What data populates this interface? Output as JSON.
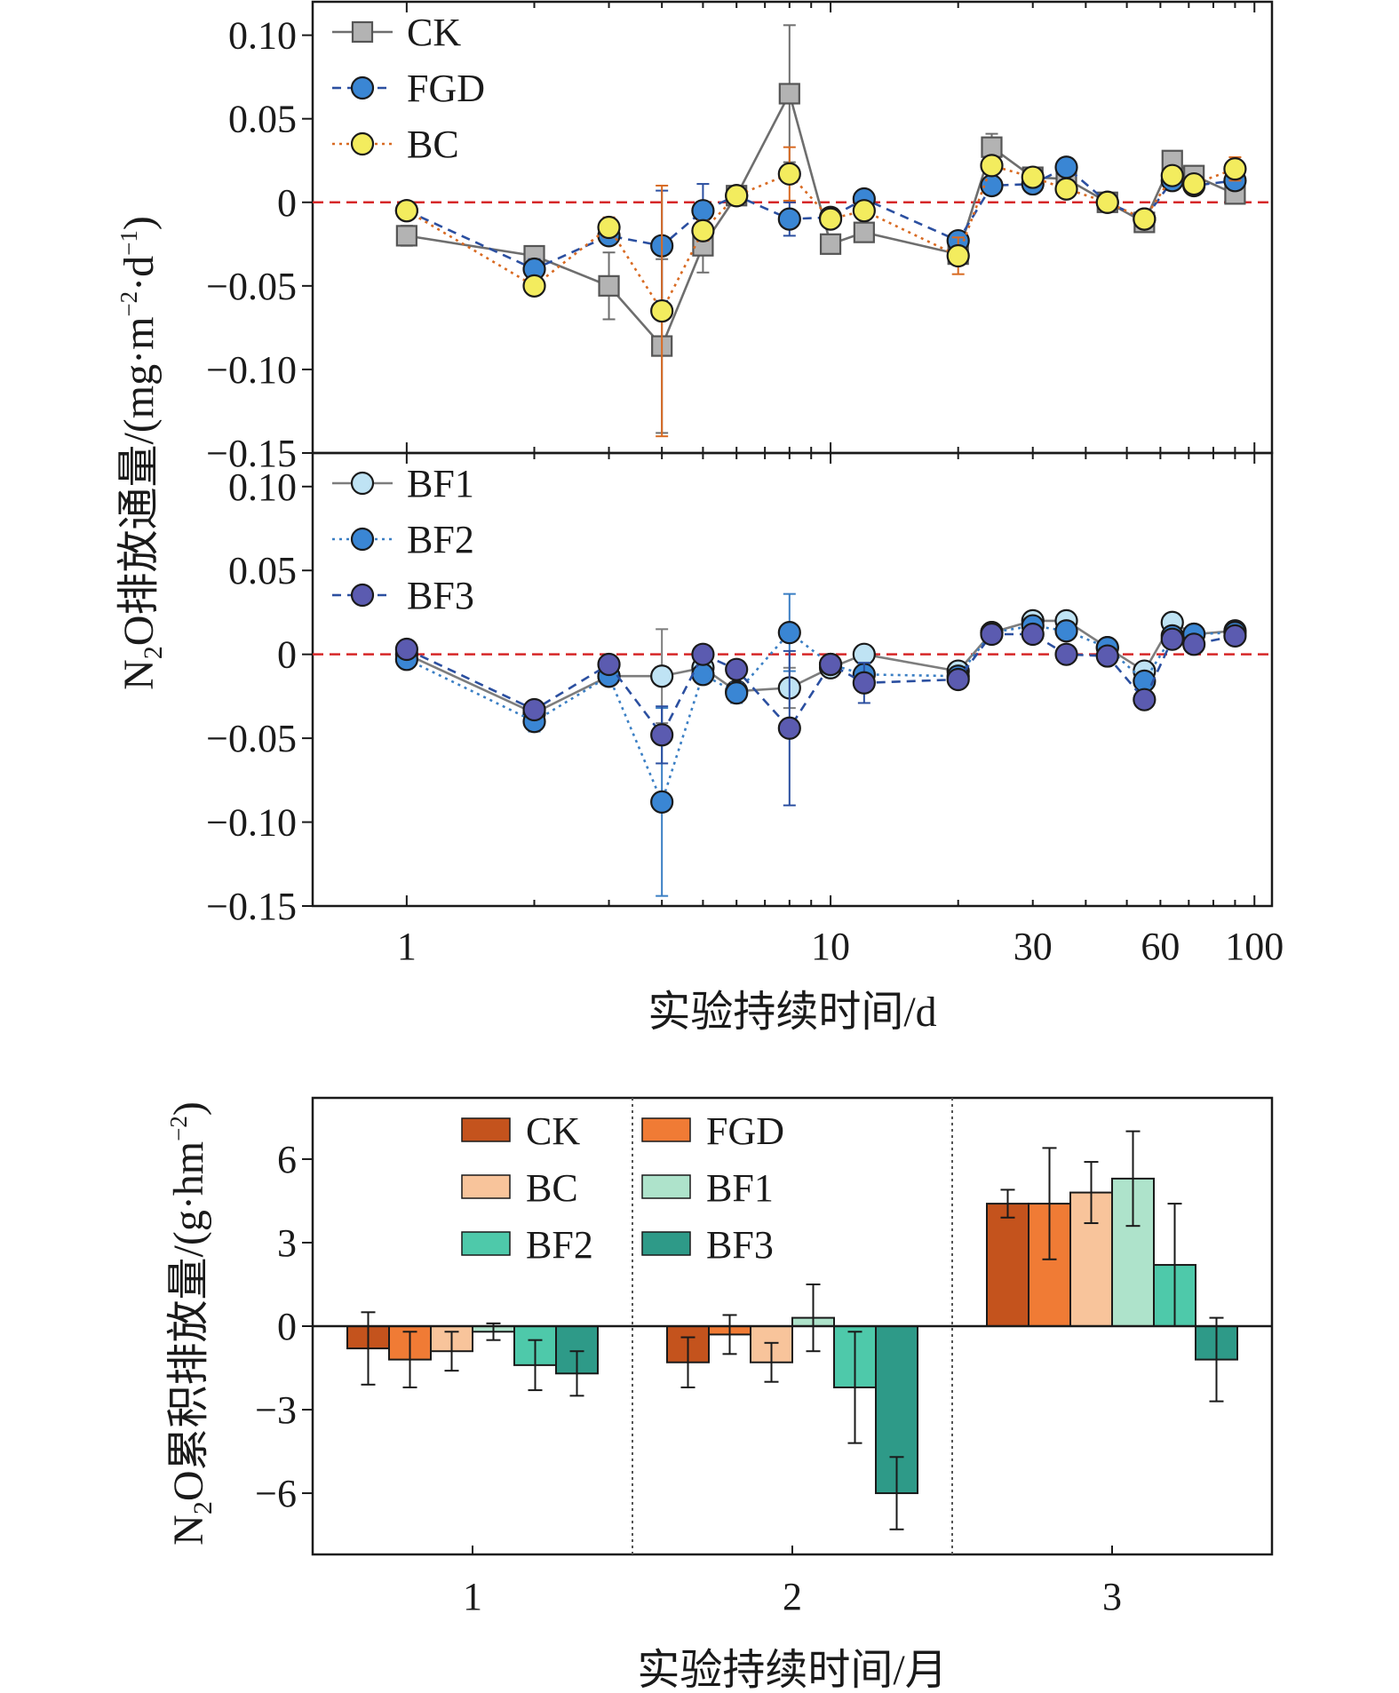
{
  "chart_data": [
    {
      "type": "line",
      "panel": "top",
      "x_scale": "log",
      "xlim": [
        0.6,
        110
      ],
      "ylim": [
        -0.15,
        0.12
      ],
      "yticks": [
        0.1,
        0.05,
        0,
        -0.05,
        -0.1,
        -0.15
      ],
      "ytick_labels": [
        "0.10",
        "0.05",
        "0",
        "−0.05",
        "−0.10",
        "−0.15"
      ],
      "zero_line": true,
      "legend_position": "top-left",
      "x": [
        1,
        2,
        3,
        4,
        5,
        6,
        8,
        10,
        12,
        20,
        24,
        30,
        36,
        45,
        55,
        64,
        72,
        90
      ],
      "series": [
        {
          "name": "CK",
          "marker": "square",
          "line": "solid",
          "color": "#6e6e6e",
          "fill": "#b3b3b3",
          "values": [
            -0.02,
            -0.032,
            -0.05,
            -0.086,
            -0.026,
            0.004,
            0.065,
            -0.025,
            -0.018,
            -0.031,
            0.033,
            0.015,
            0.014,
            0.0,
            -0.012,
            0.025,
            0.016,
            0.005
          ],
          "errors": [
            0.006,
            0.004,
            0.02,
            0.052,
            0.016,
            0.004,
            0.041,
            0.004,
            0.004,
            0.004,
            0.008,
            0.005,
            0.004,
            0.003,
            0.003,
            0.005,
            0.005,
            0.004
          ]
        },
        {
          "name": "FGD",
          "marker": "circle",
          "line": "dashed",
          "color": "#2b4fa0",
          "fill": "#3a86d4",
          "values": [
            -0.005,
            -0.04,
            -0.02,
            -0.026,
            -0.005,
            0.004,
            -0.01,
            -0.009,
            0.002,
            -0.023,
            0.01,
            0.011,
            0.021,
            0.0,
            -0.01,
            0.013,
            0.01,
            0.013
          ],
          "errors": [
            0.004,
            0.006,
            0.004,
            0.033,
            0.016,
            0.004,
            0.01,
            0.004,
            0.004,
            0.004,
            0.004,
            0.004,
            0.004,
            0.003,
            0.004,
            0.004,
            0.004,
            0.004
          ]
        },
        {
          "name": "BC",
          "marker": "circle",
          "line": "dotted",
          "color": "#d86a22",
          "fill": "#f3ec5e",
          "values": [
            -0.005,
            -0.05,
            -0.015,
            -0.065,
            -0.017,
            0.004,
            0.017,
            -0.01,
            -0.005,
            -0.032,
            0.022,
            0.015,
            0.008,
            0.0,
            -0.01,
            0.016,
            0.011,
            0.02
          ],
          "errors": [
            0.004,
            0.004,
            0.006,
            0.075,
            0.006,
            0.004,
            0.016,
            0.004,
            0.004,
            0.011,
            0.004,
            0.004,
            0.004,
            0.003,
            0.003,
            0.004,
            0.004,
            0.007
          ]
        }
      ]
    },
    {
      "type": "line",
      "panel": "middle",
      "x_scale": "log",
      "xlim": [
        0.6,
        110
      ],
      "ylim": [
        -0.15,
        0.12
      ],
      "yticks": [
        0.1,
        0.05,
        0,
        -0.05,
        -0.1,
        -0.15
      ],
      "ytick_labels": [
        "0.10",
        "0.05",
        "0",
        "−0.05",
        "−0.10",
        "−0.15"
      ],
      "xticks": [
        1,
        10,
        30,
        60,
        100
      ],
      "xtick_labels": [
        "1",
        "10",
        "30",
        "60",
        "100"
      ],
      "xlabel": "实验持续时间/d",
      "zero_line": true,
      "legend_position": "top-left",
      "x": [
        1,
        2,
        3,
        4,
        5,
        6,
        8,
        10,
        12,
        20,
        24,
        30,
        36,
        45,
        55,
        64,
        72,
        90
      ],
      "series": [
        {
          "name": "BF1",
          "marker": "circle",
          "line": "solid",
          "color": "#7d7d7d",
          "fill": "#bfe3f4",
          "values": [
            0.0,
            -0.035,
            -0.013,
            -0.013,
            -0.008,
            -0.022,
            -0.02,
            -0.008,
            0.0,
            -0.01,
            0.013,
            0.02,
            0.02,
            0.004,
            -0.01,
            0.019,
            0.012,
            0.014
          ],
          "errors": [
            0.004,
            0.004,
            0.004,
            0.028,
            0.004,
            0.004,
            0.012,
            0.004,
            0.004,
            0.004,
            0.004,
            0.004,
            0.005,
            0.003,
            0.004,
            0.004,
            0.004,
            0.004
          ]
        },
        {
          "name": "BF2",
          "marker": "circle",
          "line": "dotted",
          "color": "#3b7fc4",
          "fill": "#3a86d4",
          "values": [
            -0.003,
            -0.04,
            -0.013,
            -0.088,
            -0.012,
            -0.023,
            0.013,
            -0.006,
            -0.012,
            -0.013,
            0.013,
            0.017,
            0.014,
            0.004,
            -0.016,
            0.011,
            0.012,
            0.013
          ],
          "errors": [
            0.004,
            0.006,
            0.004,
            0.056,
            0.004,
            0.006,
            0.023,
            0.004,
            0.006,
            0.004,
            0.004,
            0.004,
            0.004,
            0.003,
            0.004,
            0.004,
            0.004,
            0.004
          ]
        },
        {
          "name": "BF3",
          "marker": "circle",
          "line": "dashed",
          "color": "#2b4fa0",
          "fill": "#5b5bb0",
          "values": [
            0.003,
            -0.033,
            -0.006,
            -0.048,
            0.0,
            -0.009,
            -0.044,
            -0.006,
            -0.017,
            -0.015,
            0.012,
            0.012,
            0.0,
            -0.001,
            -0.027,
            0.009,
            0.006,
            0.011
          ],
          "errors": [
            0.004,
            0.004,
            0.004,
            0.017,
            0.004,
            0.004,
            0.046,
            0.004,
            0.012,
            0.004,
            0.004,
            0.004,
            0.004,
            0.003,
            0.004,
            0.004,
            0.004,
            0.004
          ]
        }
      ]
    },
    {
      "type": "bar",
      "panel": "bottom",
      "categories": [
        "1",
        "2",
        "3"
      ],
      "xlabel": "实验持续时间/月",
      "ylim": [
        -8.2,
        8.2
      ],
      "yticks": [
        6,
        3,
        0,
        -3,
        -6
      ],
      "ytick_labels": [
        "6",
        "3",
        "0",
        "−3",
        "−6"
      ],
      "grid": false,
      "separators": true,
      "legend_position": "top-left",
      "series": [
        {
          "name": "CK",
          "color": "#c4531d",
          "values": [
            -0.8,
            -1.3,
            4.4
          ],
          "errors": [
            1.3,
            0.9,
            0.5
          ]
        },
        {
          "name": "FGD",
          "color": "#f07b35",
          "values": [
            -1.2,
            -0.3,
            4.4
          ],
          "errors": [
            1.0,
            0.7,
            2.0
          ]
        },
        {
          "name": "BC",
          "color": "#f8c49b",
          "values": [
            -0.9,
            -1.3,
            4.8
          ],
          "errors": [
            0.7,
            0.7,
            1.1
          ]
        },
        {
          "name": "BF1",
          "color": "#aee3cb",
          "values": [
            -0.2,
            0.3,
            5.3
          ],
          "errors": [
            0.3,
            1.2,
            1.7
          ]
        },
        {
          "name": "BF2",
          "color": "#4ec9aa",
          "values": [
            -1.4,
            -2.2,
            2.2
          ],
          "errors": [
            0.9,
            2.0,
            2.2
          ]
        },
        {
          "name": "BF3",
          "color": "#2e9a88",
          "values": [
            -1.7,
            -6.0,
            -1.2
          ],
          "errors": [
            0.8,
            1.3,
            1.5
          ]
        }
      ]
    }
  ],
  "labels": {
    "top_ylabel_lead": "N",
    "top_ylabel_sub": "2",
    "top_ylabel_mid": "O排放通量/(mg·m",
    "top_ylabel_sup1": "−2",
    "top_ylabel_mid2": "·d",
    "top_ylabel_sup2": "−1",
    "top_ylabel_end": ")",
    "bar_ylabel_lead": "N",
    "bar_ylabel_sub": "2",
    "bar_ylabel_mid": "O累积排放量/(g·hm",
    "bar_ylabel_sup": "−2",
    "bar_ylabel_end": ")"
  },
  "colors": {
    "zero_line": "#d62728",
    "axis": "#1a1a1a",
    "separator": "#555555"
  }
}
